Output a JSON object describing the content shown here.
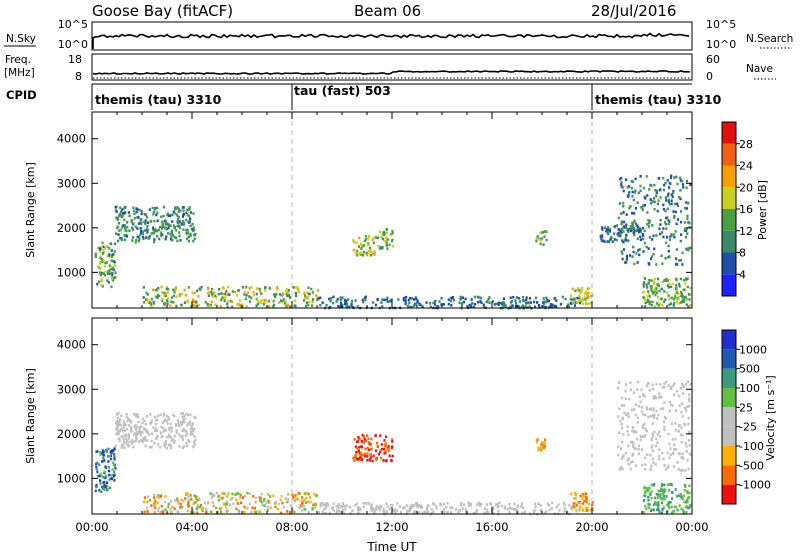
{
  "header": {
    "station": "Goose Bay (fitACF)",
    "beam": "Beam 06",
    "date": "28/Jul/2016"
  },
  "noise_panel": {
    "left_label": "N.Sky",
    "left_ticks": [
      "10^5",
      "10^0"
    ],
    "right_ticks": [
      "10^5",
      "10^0"
    ],
    "right_label": "N.Search"
  },
  "freq_panel": {
    "left_label_1": "Freq.",
    "left_label_2": "[MHz]",
    "left_ticks": [
      "18",
      "8"
    ],
    "right_ticks": [
      "60",
      "0"
    ],
    "right_label": "Nave"
  },
  "cpid": {
    "label": "CPID",
    "segments": [
      {
        "label": "themis (tau) 3310",
        "start_hour": 0
      },
      {
        "label": "tau (fast) 503",
        "start_hour": 8
      },
      {
        "label": "themis (tau) 3310",
        "start_hour": 20
      }
    ]
  },
  "colors": {
    "power_scale": [
      "#2020ff",
      "#1e4fa8",
      "#3a8a6a",
      "#48a040",
      "#c8d020",
      "#f5a000",
      "#f06010",
      "#e01010"
    ],
    "velocity_scale": [
      "#ee1010",
      "#ff6a00",
      "#ffb000",
      "#c0c0c0",
      "#c0c0c0",
      "#60c040",
      "#3a9a80",
      "#1e5ab0",
      "#2030d0"
    ]
  },
  "chart_data": [
    {
      "type": "heatmap",
      "panel": "power",
      "xlabel": "",
      "ylabel": "Slant Range [km]",
      "x_range_hours": [
        0,
        24
      ],
      "ylim": [
        200,
        4600
      ],
      "y_ticks": [
        "1000",
        "2000",
        "3000",
        "4000"
      ],
      "colorbar_label": "Power [dB]",
      "colorbar_ticks": [
        "4",
        "8",
        "12",
        "16",
        "20",
        "24",
        "28"
      ],
      "color_range": [
        0,
        32
      ],
      "echo_regions": [
        {
          "t": [
            0.1,
            0.9
          ],
          "r": [
            700,
            1700
          ],
          "v": [
            6,
            20
          ]
        },
        {
          "t": [
            0.9,
            4.1
          ],
          "r": [
            1700,
            2500
          ],
          "v": [
            6,
            16
          ]
        },
        {
          "t": [
            2.0,
            9.0
          ],
          "r": [
            250,
            700
          ],
          "v": [
            8,
            24
          ]
        },
        {
          "t": [
            9.0,
            19.5
          ],
          "r": [
            220,
            480
          ],
          "v": [
            4,
            12
          ]
        },
        {
          "t": [
            10.4,
            11.3
          ],
          "r": [
            1400,
            1850
          ],
          "v": [
            12,
            22
          ]
        },
        {
          "t": [
            11.3,
            12.0
          ],
          "r": [
            1550,
            2000
          ],
          "v": [
            10,
            20
          ]
        },
        {
          "t": [
            17.7,
            18.2
          ],
          "r": [
            1650,
            1950
          ],
          "v": [
            8,
            18
          ]
        },
        {
          "t": [
            19.1,
            20.0
          ],
          "r": [
            300,
            700
          ],
          "v": [
            14,
            24
          ]
        },
        {
          "t": [
            20.3,
            22.0
          ],
          "r": [
            1700,
            2100
          ],
          "v": [
            4,
            10
          ]
        },
        {
          "t": [
            21.0,
            23.9
          ],
          "r": [
            1200,
            3200
          ],
          "v": [
            4,
            14
          ]
        },
        {
          "t": [
            22.0,
            23.9
          ],
          "r": [
            250,
            900
          ],
          "v": [
            8,
            20
          ]
        }
      ]
    },
    {
      "type": "heatmap",
      "panel": "velocity",
      "xlabel": "Time UT",
      "ylabel": "Slant Range [km]",
      "x_range_hours": [
        0,
        24
      ],
      "x_ticks": [
        "00:00",
        "04:00",
        "08:00",
        "12:00",
        "16:00",
        "20:00",
        "00:00"
      ],
      "ylim": [
        200,
        4600
      ],
      "y_ticks": [
        "1000",
        "2000",
        "3000",
        "4000"
      ],
      "colorbar_label": "Velocity [m s⁻¹]",
      "colorbar_ticks": [
        "1000",
        "500",
        "100",
        "25",
        "-25",
        "-100",
        "-500",
        "-1000"
      ],
      "echo_regions": [
        {
          "t": [
            0.1,
            0.9
          ],
          "r": [
            700,
            1700
          ],
          "c": [
            5,
            8
          ]
        },
        {
          "t": [
            0.9,
            4.1
          ],
          "r": [
            1700,
            2500
          ],
          "c": [
            3,
            4
          ]
        },
        {
          "t": [
            2.0,
            9.0
          ],
          "r": [
            250,
            700
          ],
          "c": [
            1,
            5
          ]
        },
        {
          "t": [
            9.0,
            19.5
          ],
          "r": [
            220,
            480
          ],
          "c": [
            3,
            4
          ]
        },
        {
          "t": [
            10.4,
            12.0
          ],
          "r": [
            1400,
            2000
          ],
          "c": [
            0,
            1
          ]
        },
        {
          "t": [
            17.7,
            18.2
          ],
          "r": [
            1650,
            1950
          ],
          "c": [
            1,
            2
          ]
        },
        {
          "t": [
            19.1,
            20.0
          ],
          "r": [
            300,
            700
          ],
          "c": [
            1,
            2
          ]
        },
        {
          "t": [
            21.0,
            23.9
          ],
          "r": [
            1200,
            3200
          ],
          "c": [
            3,
            4
          ]
        },
        {
          "t": [
            22.0,
            23.9
          ],
          "r": [
            250,
            900
          ],
          "c": [
            5,
            6
          ]
        }
      ]
    }
  ]
}
